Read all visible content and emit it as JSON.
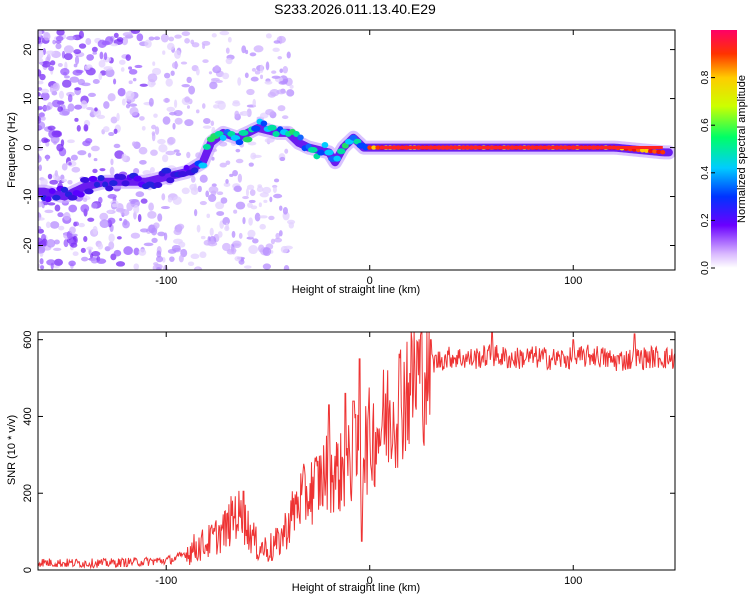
{
  "title": "S233.2026.011.13.40.E29",
  "chart_data": [
    {
      "type": "heatmap",
      "xlabel": "Height of straight line (km)",
      "ylabel": "Frequency (Hz)",
      "xlim": [
        -163,
        150
      ],
      "ylim": [
        -25,
        24
      ],
      "x_ticks": [
        "-100",
        "0",
        "100"
      ],
      "y_ticks": [
        "-20",
        "-10",
        "0",
        "10",
        "20"
      ],
      "ridge": [
        {
          "x": -160,
          "y": -9
        },
        {
          "x": -150,
          "y": -10
        },
        {
          "x": -140,
          "y": -8
        },
        {
          "x": -130,
          "y": -7
        },
        {
          "x": -120,
          "y": -7
        },
        {
          "x": -110,
          "y": -7
        },
        {
          "x": -100,
          "y": -6
        },
        {
          "x": -90,
          "y": -5
        },
        {
          "x": -82,
          "y": -3
        },
        {
          "x": -78,
          "y": 1
        },
        {
          "x": -72,
          "y": 3
        },
        {
          "x": -65,
          "y": 2
        },
        {
          "x": -55,
          "y": 4
        },
        {
          "x": -45,
          "y": 3
        },
        {
          "x": -40,
          "y": 3
        },
        {
          "x": -35,
          "y": 1
        },
        {
          "x": -30,
          "y": 0
        },
        {
          "x": -20,
          "y": -1
        },
        {
          "x": -17,
          "y": -3
        },
        {
          "x": -13,
          "y": 0
        },
        {
          "x": -8,
          "y": 2
        },
        {
          "x": -3,
          "y": 0
        },
        {
          "x": 5,
          "y": 0
        },
        {
          "x": 40,
          "y": 0
        },
        {
          "x": 80,
          "y": 0
        },
        {
          "x": 120,
          "y": 0
        },
        {
          "x": 145,
          "y": -1
        }
      ]
    },
    {
      "type": "line",
      "xlabel": "Height of straight line (km)",
      "ylabel": "SNR (10 * v/v)",
      "xlim": [
        -163,
        150
      ],
      "ylim": [
        0,
        620
      ],
      "x_ticks": [
        "-100",
        "0",
        "100"
      ],
      "y_ticks": [
        "0",
        "200",
        "400",
        "600"
      ],
      "series": [
        {
          "name": "SNR",
          "color": "#ee3333",
          "x": [
            -163,
            -150,
            -140,
            -130,
            -120,
            -110,
            -100,
            -95,
            -90,
            -85,
            -80,
            -75,
            -70,
            -66,
            -62,
            -58,
            -55,
            -50,
            -45,
            -40,
            -35,
            -30,
            -25,
            -20,
            -15,
            -10,
            -5,
            0,
            5,
            10,
            15,
            20,
            25,
            30,
            40,
            50,
            60,
            70,
            80,
            90,
            100,
            110,
            120,
            130,
            140,
            150
          ],
          "values": [
            20,
            18,
            18,
            18,
            20,
            22,
            25,
            30,
            45,
            60,
            70,
            90,
            110,
            150,
            130,
            90,
            60,
            55,
            70,
            120,
            180,
            200,
            230,
            260,
            250,
            270,
            300,
            340,
            370,
            410,
            450,
            490,
            520,
            540,
            555,
            550,
            560,
            550,
            555,
            550,
            550,
            560,
            545,
            550,
            555,
            550
          ]
        }
      ],
      "spikes": [
        {
          "x": -62,
          "value": 205
        },
        {
          "x": -48,
          "value": 25
        },
        {
          "x": -5,
          "value": 550
        },
        {
          "x": -8,
          "value": 440
        },
        {
          "x": -12,
          "value": 460
        },
        {
          "x": -4,
          "value": 75
        },
        {
          "x": -20,
          "value": 430
        },
        {
          "x": 30,
          "value": 600
        },
        {
          "x": 60,
          "value": 620
        },
        {
          "x": 100,
          "value": 600
        },
        {
          "x": 130,
          "value": 615
        }
      ]
    }
  ],
  "colorbar": {
    "label": "Normalized spectral amplitude",
    "ticks": [
      "0.0",
      "0.2",
      "0.4",
      "0.6",
      "0.8"
    ],
    "range": [
      0,
      1
    ]
  }
}
